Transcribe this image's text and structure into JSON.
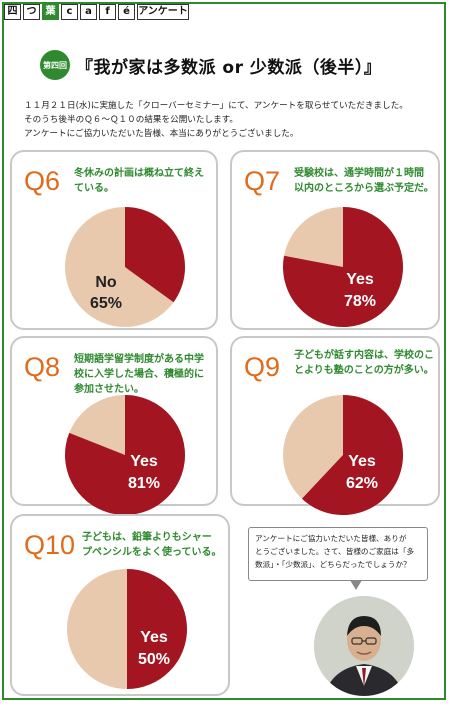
{
  "header": {
    "cells": [
      "四",
      "つ",
      "葉",
      "c",
      "a",
      "f",
      "é",
      "アンケート"
    ]
  },
  "title": {
    "badge": "第四回",
    "text": "『我が家は多数派 or 少数派（後半）』"
  },
  "intro": {
    "line1": "１１月２１日(水)に実施した「クローバーセミナー」にて、アンケートを取らせていただきました。",
    "line2": "そのうち後半のＱ６～Ｑ１０の結果を公開いたします。",
    "line3": "アンケートにご協力いただいた皆様、本当にありがとうございました。"
  },
  "cards": [
    {
      "q": "Q6",
      "line1": "冬休みの計画は概ね立て終え",
      "line2": "ている。",
      "line3": "",
      "result_label": "No",
      "result_value": "65%",
      "fraction": 0.65
    },
    {
      "q": "Q7",
      "line1": "受験校は、通学時間が１時間",
      "line2": "以内のところから選ぶ予定だ。",
      "line3": "",
      "result_label": "Yes",
      "result_value": "78%",
      "fraction": 0.78
    },
    {
      "q": "Q8",
      "line1": "短期語学留学制度がある中学",
      "line2": "校に入学した場合、積極的に",
      "line3": "参加させたい。",
      "result_label": "Yes",
      "result_value": "81%",
      "fraction": 0.81
    },
    {
      "q": "Q9",
      "line1": "子どもが話す内容は、学校のこ",
      "line2": "とよりも塾のことの方が多い。",
      "line3": "",
      "result_label": "Yes",
      "result_value": "62%",
      "fraction": 0.62
    },
    {
      "q": "Q10",
      "line1": "子どもは、鉛筆よりもシャー",
      "line2": "プペンシルをよく使っている。",
      "line3": "",
      "result_label": "Yes",
      "result_value": "50%",
      "fraction": 0.5
    }
  ],
  "speech": {
    "line1": "アンケートにご協力いただいた皆様、ありが",
    "line2": "とうございました。さて、皆様のご家庭は「多",
    "line3": "数派」・「少数派」、どちらだったでしょうか？"
  },
  "colors": {
    "accent_green": "#2f8a2f",
    "q_orange": "#e06b1a",
    "pie_red": "#a31621",
    "pie_beige": "#e8c9ad"
  }
}
